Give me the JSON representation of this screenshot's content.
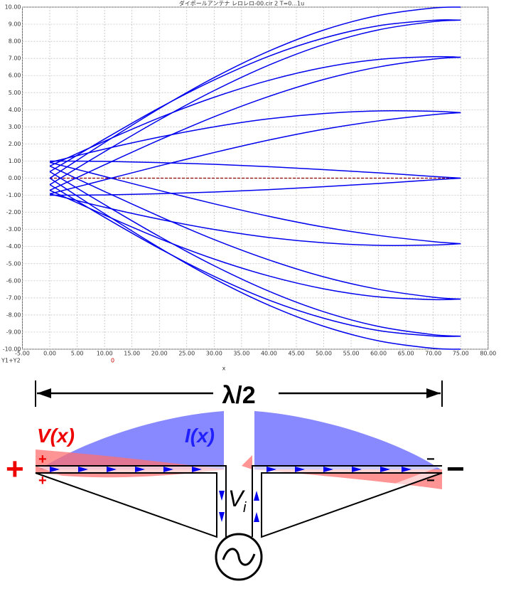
{
  "chart_data": {
    "type": "line",
    "title": "ダイポールアンテナ レロレロ-00.cir 2 T=0...1u",
    "xlabel": "x",
    "trace_labels": [
      "Y1+Y2",
      "0"
    ],
    "color": "#0000ee",
    "grid": true,
    "zero_line": {
      "value": 0,
      "color": "#8b0000"
    },
    "xlim": [
      -5,
      80
    ],
    "ylim": [
      -10,
      10
    ],
    "xticks": [
      {
        "value": -5,
        "label": "-5.00"
      },
      {
        "value": 0,
        "label": "0.00"
      },
      {
        "value": 5,
        "label": "5.00"
      },
      {
        "value": 10,
        "label": "10.00"
      },
      {
        "value": 15,
        "label": "15.00"
      },
      {
        "value": 20,
        "label": "20.00"
      },
      {
        "value": 25,
        "label": "25.00"
      },
      {
        "value": 30,
        "label": "30.00"
      },
      {
        "value": 35,
        "label": "35.00"
      },
      {
        "value": 40,
        "label": "40.00"
      },
      {
        "value": 45,
        "label": "45.00"
      },
      {
        "value": 50,
        "label": "50.00"
      },
      {
        "value": 55,
        "label": "55.00"
      },
      {
        "value": 60,
        "label": "60.00"
      },
      {
        "value": 65,
        "label": "65.00"
      },
      {
        "value": 70,
        "label": "70.00"
      },
      {
        "value": 75,
        "label": "75.00"
      },
      {
        "value": 80,
        "label": "80.00"
      }
    ],
    "yticks": [
      {
        "value": -10,
        "label": "-10.00"
      },
      {
        "value": -9,
        "label": "-9.00"
      },
      {
        "value": -8,
        "label": "-8.00"
      },
      {
        "value": -7,
        "label": "-7.00"
      },
      {
        "value": -6,
        "label": "-6.00"
      },
      {
        "value": -5,
        "label": "-5.00"
      },
      {
        "value": -4,
        "label": "-4.00"
      },
      {
        "value": -3,
        "label": "-3.00"
      },
      {
        "value": -2,
        "label": "-2.00"
      },
      {
        "value": -1,
        "label": "-1.00"
      },
      {
        "value": 0,
        "label": "0.00"
      },
      {
        "value": 1,
        "label": "1.00"
      },
      {
        "value": 2,
        "label": "2.00"
      },
      {
        "value": 3,
        "label": "3.00"
      },
      {
        "value": 4,
        "label": "4.00"
      },
      {
        "value": 5,
        "label": "5.00"
      },
      {
        "value": 6,
        "label": "6.00"
      },
      {
        "value": 7,
        "label": "7.00"
      },
      {
        "value": 8,
        "label": "8.00"
      },
      {
        "value": 9,
        "label": "9.00"
      },
      {
        "value": 10,
        "label": "10.00"
      }
    ],
    "x": [
      0,
      10,
      20,
      30,
      40,
      50,
      60,
      70,
      75
    ],
    "series": [
      {
        "values": [
          1,
          0.98,
          0.91,
          0.81,
          0.67,
          0.5,
          0.31,
          0.1,
          0
        ]
      },
      {
        "values": [
          0.92,
          1.7,
          2.4,
          3.0,
          3.47,
          3.78,
          3.93,
          3.91,
          3.83
        ]
      },
      {
        "values": [
          0.71,
          2.16,
          3.53,
          4.73,
          5.72,
          6.47,
          6.94,
          7.1,
          7.07
        ]
      },
      {
        "values": [
          0.38,
          2.29,
          4.11,
          5.74,
          7.13,
          8.19,
          8.91,
          9.23,
          9.24
        ]
      },
      {
        "values": [
          0,
          2.08,
          4.07,
          5.88,
          7.43,
          8.66,
          9.51,
          9.95,
          10
        ]
      },
      {
        "values": [
          -0.38,
          1.55,
          3.41,
          5.12,
          6.61,
          7.81,
          8.67,
          9.15,
          9.24
        ]
      },
      {
        "values": [
          -0.71,
          0.78,
          2.23,
          3.59,
          4.78,
          5.77,
          6.5,
          6.96,
          7.07
        ]
      },
      {
        "values": [
          -0.92,
          -0.1,
          0.72,
          1.5,
          2.23,
          2.86,
          3.35,
          3.71,
          3.83
        ]
      },
      {
        "values": [
          -1,
          -0.98,
          -0.91,
          -0.81,
          -0.67,
          -0.5,
          -0.31,
          -0.1,
          0
        ]
      },
      {
        "values": [
          -0.92,
          -1.7,
          -2.4,
          -3.0,
          -3.47,
          -3.78,
          -3.93,
          -3.91,
          -3.83
        ]
      },
      {
        "values": [
          -0.71,
          -2.16,
          -3.53,
          -4.73,
          -5.72,
          -6.47,
          -6.94,
          -7.1,
          -7.07
        ]
      },
      {
        "values": [
          -0.38,
          -2.29,
          -4.11,
          -5.74,
          -7.13,
          -8.19,
          -8.91,
          -9.23,
          -9.24
        ]
      },
      {
        "values": [
          0,
          -2.08,
          -4.07,
          -5.88,
          -7.43,
          -8.66,
          -9.51,
          -9.95,
          -10
        ]
      },
      {
        "values": [
          0.38,
          -1.55,
          -3.41,
          -5.12,
          -6.61,
          -7.81,
          -8.67,
          -9.15,
          -9.24
        ]
      },
      {
        "values": [
          0.71,
          -0.78,
          -2.23,
          -3.59,
          -4.78,
          -5.77,
          -6.5,
          -6.96,
          -7.07
        ]
      },
      {
        "values": [
          0.92,
          0.1,
          -0.72,
          -1.5,
          -2.23,
          -2.86,
          -3.35,
          -3.71,
          -3.83
        ]
      }
    ]
  },
  "diagram": {
    "span_label": "λ/2",
    "voltage_label": "V(x)",
    "current_label": "I(x)",
    "source_label": "V",
    "source_subscript": "i",
    "plus": "+",
    "minus": "−"
  }
}
